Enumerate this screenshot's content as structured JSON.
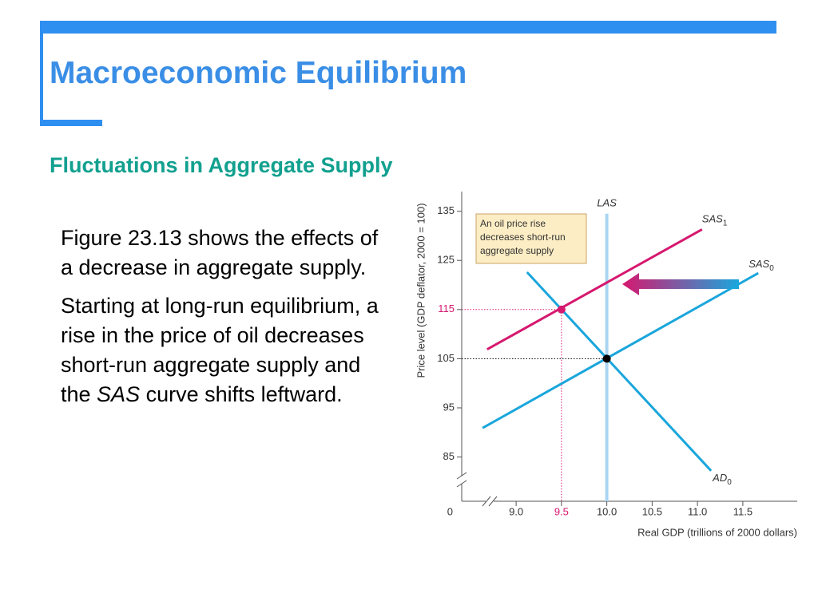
{
  "header": {
    "title": "Macroeconomic Equilibrium"
  },
  "section": {
    "title": "Fluctuations in Aggregate Supply"
  },
  "body": {
    "paragraphs": [
      [
        "Figure 23.13 shows the effects of a decrease in aggregate supply."
      ],
      [
        "Starting at long-run equilibrium, a rise in the price of oil decreases short-run aggregate supply and the ",
        "SAS",
        " curve shifts leftward."
      ]
    ]
  },
  "chart_data": {
    "type": "line",
    "xlabel": "Real GDP (trillions of 2000 dollars)",
    "ylabel": "Price level (GDP deflator, 2000 = 100)",
    "origin_label": "0",
    "annotation": [
      "An oil price rise",
      "decreases short-run",
      "aggregate supply"
    ],
    "xlim": [
      8.4,
      12.1
    ],
    "ylim": [
      76,
      139
    ],
    "xticks": [
      {
        "value": 9,
        "label": "9.0"
      },
      9.5,
      {
        "value": 10,
        "label": "10.0"
      },
      10.5,
      {
        "value": 11,
        "label": "11.0"
      },
      11.5
    ],
    "yticks": [
      85,
      95,
      105,
      115,
      125,
      135
    ],
    "series": [
      {
        "name": "LAS",
        "color": "#a9d5f2",
        "x": [
          10,
          10
        ],
        "values": [
          134.5,
          76
        ]
      },
      {
        "name": "SAS",
        "sub": "1",
        "color": "#d6186f",
        "x": [
          8.68,
          11.05
        ],
        "values": [
          106.9,
          131.3
        ]
      },
      {
        "name": "SAS",
        "sub": "0",
        "color": "#1aa6dc",
        "x": [
          8.63,
          11.67
        ],
        "values": [
          90.9,
          122.4
        ]
      },
      {
        "name": "AD",
        "sub": "0",
        "color": "#1aa6dc",
        "x": [
          9.12,
          11.15
        ],
        "values": [
          122.6,
          82.2
        ]
      }
    ],
    "points": [
      {
        "x": 9.5,
        "y": 115,
        "color": "#d6186f"
      },
      {
        "x": 10,
        "y": 105,
        "color": "#000000"
      }
    ]
  }
}
